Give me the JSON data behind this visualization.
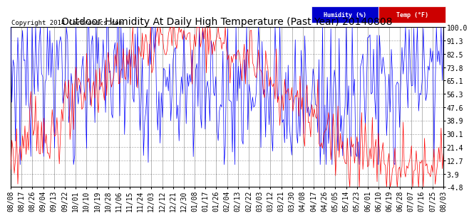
{
  "title": "Outdoor Humidity At Daily High Temperature (Past Year) 20140808",
  "copyright": "Copyright 2014 Cartronics.com",
  "yticks": [
    100.0,
    91.3,
    82.5,
    73.8,
    65.1,
    56.3,
    47.6,
    38.9,
    30.1,
    21.4,
    12.7,
    3.9,
    -4.8
  ],
  "ylim": [
    -4.8,
    100.0
  ],
  "xtick_labels": [
    "08/08",
    "08/17",
    "08/26",
    "09/04",
    "09/13",
    "09/22",
    "10/01",
    "10/10",
    "10/19",
    "10/28",
    "11/06",
    "11/15",
    "11/24",
    "12/03",
    "12/12",
    "12/21",
    "12/30",
    "01/08",
    "01/17",
    "01/26",
    "02/04",
    "02/13",
    "02/22",
    "03/03",
    "03/12",
    "03/21",
    "03/30",
    "04/08",
    "04/17",
    "04/26",
    "05/05",
    "05/14",
    "05/23",
    "06/01",
    "06/10",
    "06/19",
    "06/28",
    "07/07",
    "07/16",
    "07/25",
    "08/03"
  ],
  "humidity_color": "#0000ff",
  "temp_color": "#ff0000",
  "background_color": "#ffffff",
  "grid_color": "#b0b0b0",
  "title_fontsize": 10,
  "tick_fontsize": 7,
  "copyright_fontsize": 6.5,
  "legend_humidity_label": "Humidity (%)",
  "legend_temp_label": "Temp (°F)",
  "legend_humidity_bg": "#0000cc",
  "legend_temp_bg": "#cc0000"
}
